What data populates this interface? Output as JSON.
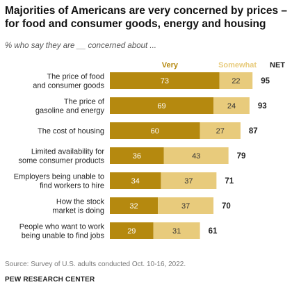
{
  "title": "Majorities of Americans are very concerned by prices – for food and consumer goods, energy and housing",
  "subtitle": "% who say they are __ concerned about ...",
  "chart_data": {
    "type": "bar",
    "orientation": "horizontal",
    "stacked": true,
    "categories": [
      [
        "The price of food",
        "and consumer goods"
      ],
      [
        "The price of",
        "gasoline and energy"
      ],
      [
        "The cost of housing"
      ],
      [
        "Limited availability for",
        "some consumer products"
      ],
      [
        "Employers being unable to",
        "find workers to hire"
      ],
      [
        "How the stock",
        "market is doing"
      ],
      [
        "People who want to work",
        "being unable to find jobs"
      ]
    ],
    "series": [
      {
        "name": "Very",
        "values": [
          73,
          69,
          60,
          36,
          34,
          32,
          29
        ],
        "color": "#b5890f"
      },
      {
        "name": "Somewhat",
        "values": [
          22,
          24,
          27,
          43,
          37,
          37,
          31
        ],
        "color": "#e8cb7c"
      }
    ],
    "net_label": "NET",
    "net": [
      95,
      93,
      87,
      79,
      71,
      70,
      61
    ],
    "xlim": [
      0,
      100
    ],
    "grid": false,
    "legend": "top"
  },
  "source": "Source: Survey of U.S. adults conducted Oct. 10-16, 2022.",
  "brand": "PEW RESEARCH CENTER"
}
